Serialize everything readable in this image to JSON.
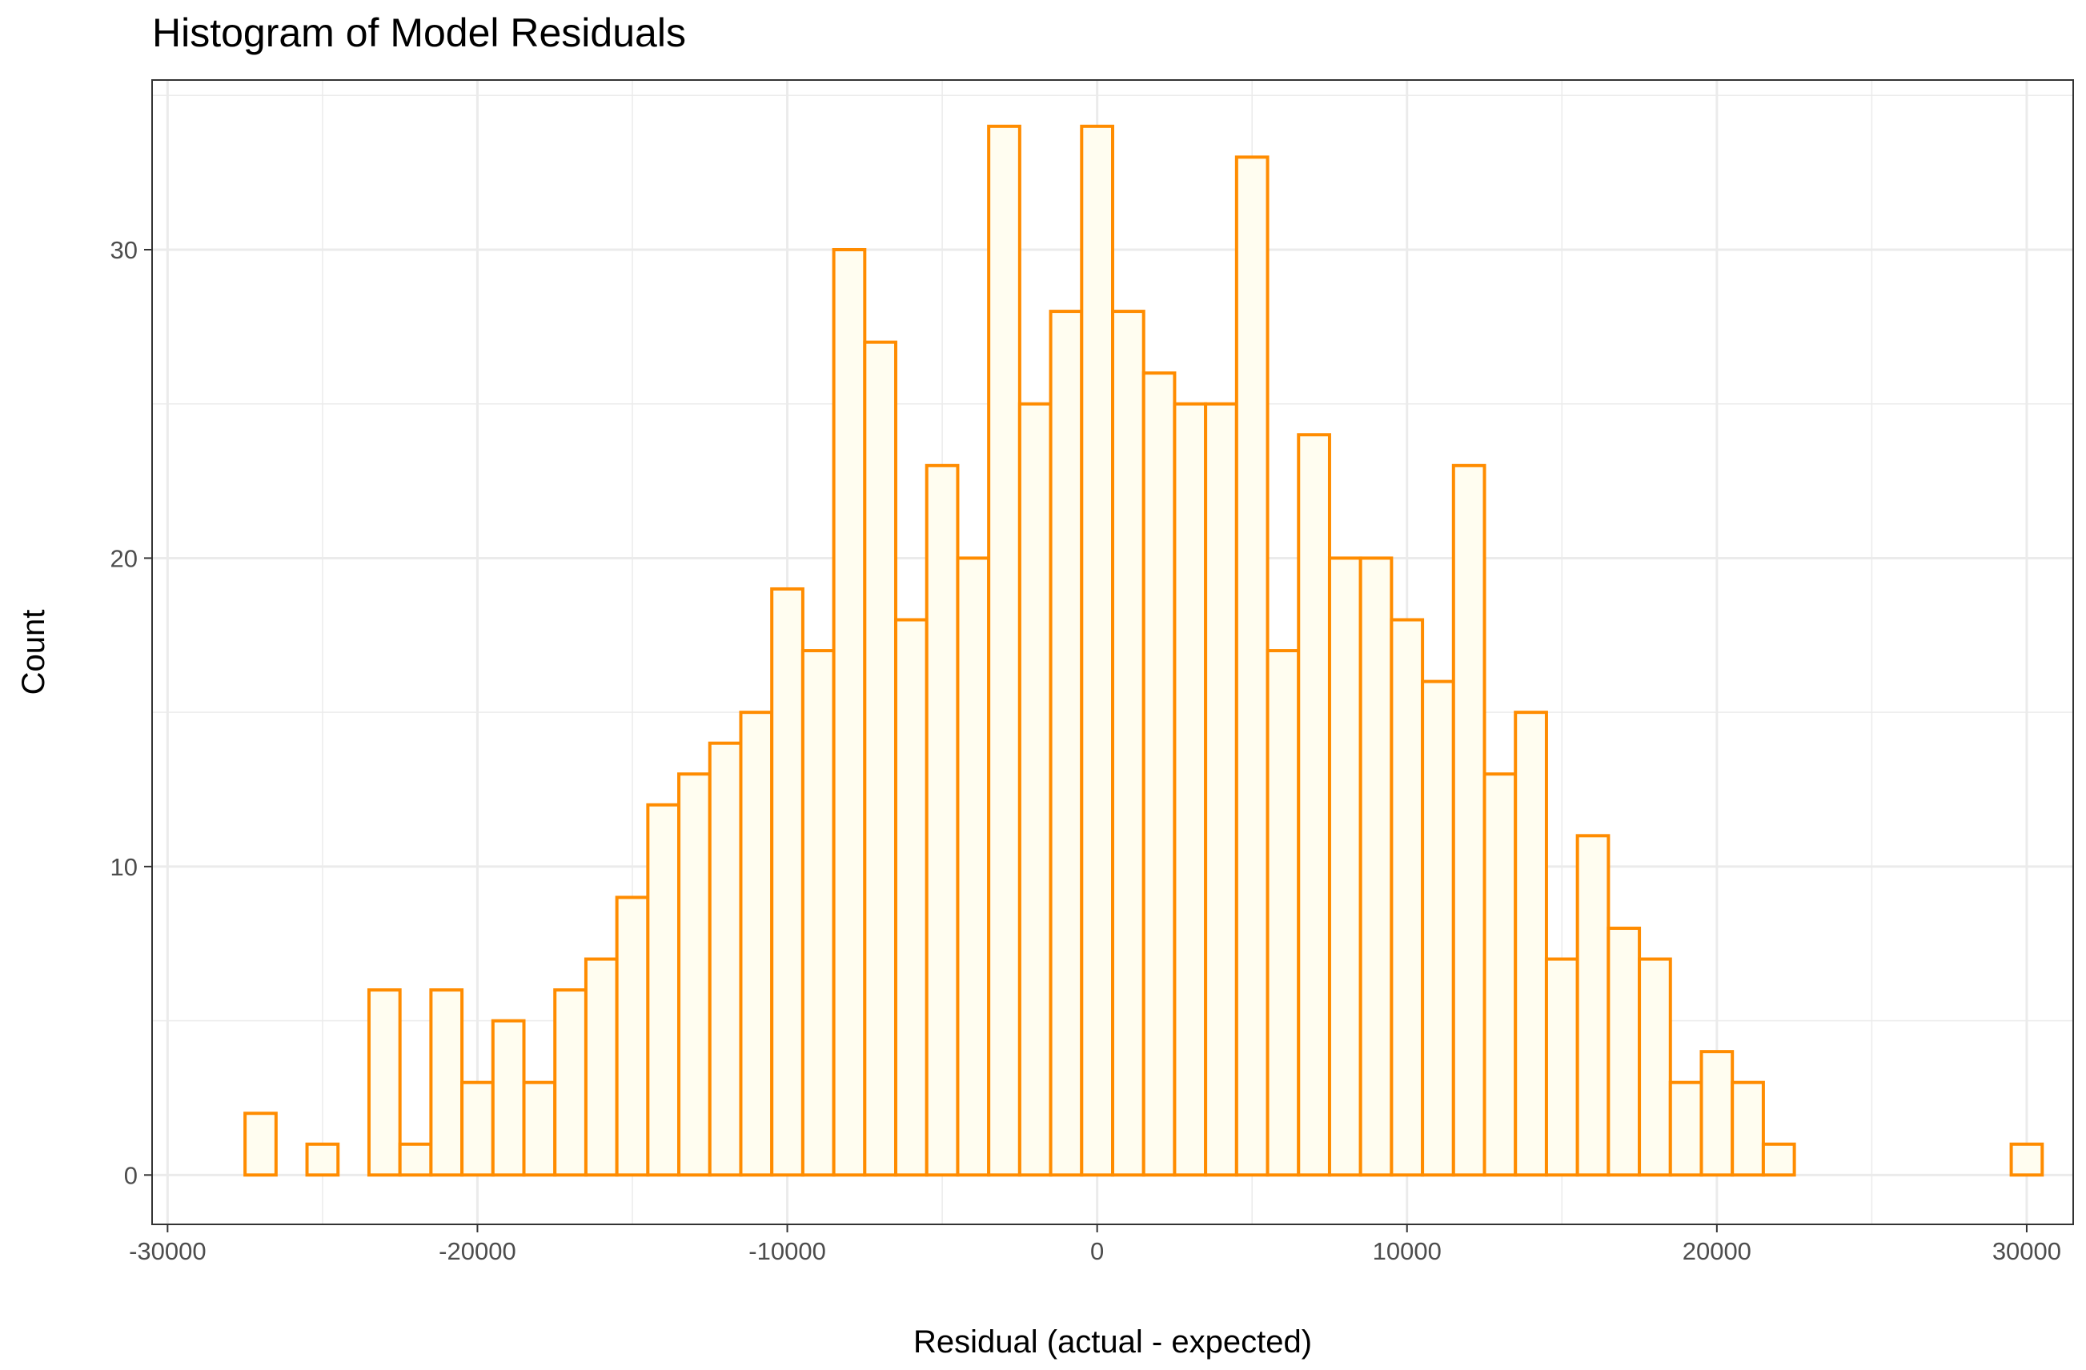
{
  "chart_data": {
    "type": "bar",
    "title": "Histogram of Model Residuals",
    "xlabel": "Residual (actual - expected)",
    "ylabel": "Count",
    "bin_width": 1000,
    "bin_centers": [
      -27000,
      -26000,
      -25000,
      -24000,
      -23000,
      -22000,
      -21000,
      -20000,
      -19000,
      -18000,
      -17000,
      -16000,
      -15000,
      -14000,
      -13000,
      -12000,
      -11000,
      -10000,
      -9000,
      -8000,
      -7000,
      -6000,
      -5000,
      -4000,
      -3000,
      -2000,
      -1000,
      0,
      1000,
      2000,
      3000,
      4000,
      5000,
      6000,
      7000,
      8000,
      9000,
      10000,
      11000,
      12000,
      13000,
      14000,
      15000,
      16000,
      17000,
      18000,
      19000,
      20000,
      21000,
      22000,
      23000,
      24000,
      25000,
      26000,
      27000,
      28000,
      29000,
      30000
    ],
    "values": [
      2,
      0,
      1,
      0,
      6,
      1,
      6,
      3,
      5,
      3,
      6,
      7,
      9,
      12,
      13,
      14,
      15,
      19,
      17,
      30,
      27,
      18,
      23,
      20,
      34,
      25,
      28,
      34,
      28,
      26,
      25,
      25,
      33,
      17,
      24,
      20,
      20,
      18,
      16,
      23,
      13,
      15,
      7,
      11,
      8,
      7,
      3,
      4,
      3,
      1,
      0,
      0,
      0,
      0,
      0,
      0,
      0,
      1
    ],
    "xlim": [
      -30500,
      31500
    ],
    "ylim": [
      -1.6,
      35.5
    ],
    "x_ticks": [
      -30000,
      -20000,
      -10000,
      0,
      10000,
      20000,
      30000
    ],
    "x_tick_labels": [
      "-30000",
      "-20000",
      "-10000",
      "0",
      "10000",
      "20000",
      "30000"
    ],
    "y_ticks": [
      0,
      10,
      20,
      30
    ],
    "y_tick_labels": [
      "0",
      "10",
      "20",
      "30"
    ],
    "bar_fill": "#FFFDF0",
    "bar_stroke": "#FF8C00",
    "grid": true,
    "grid_color": "#EBEBEB",
    "panel_border": "#333333"
  }
}
